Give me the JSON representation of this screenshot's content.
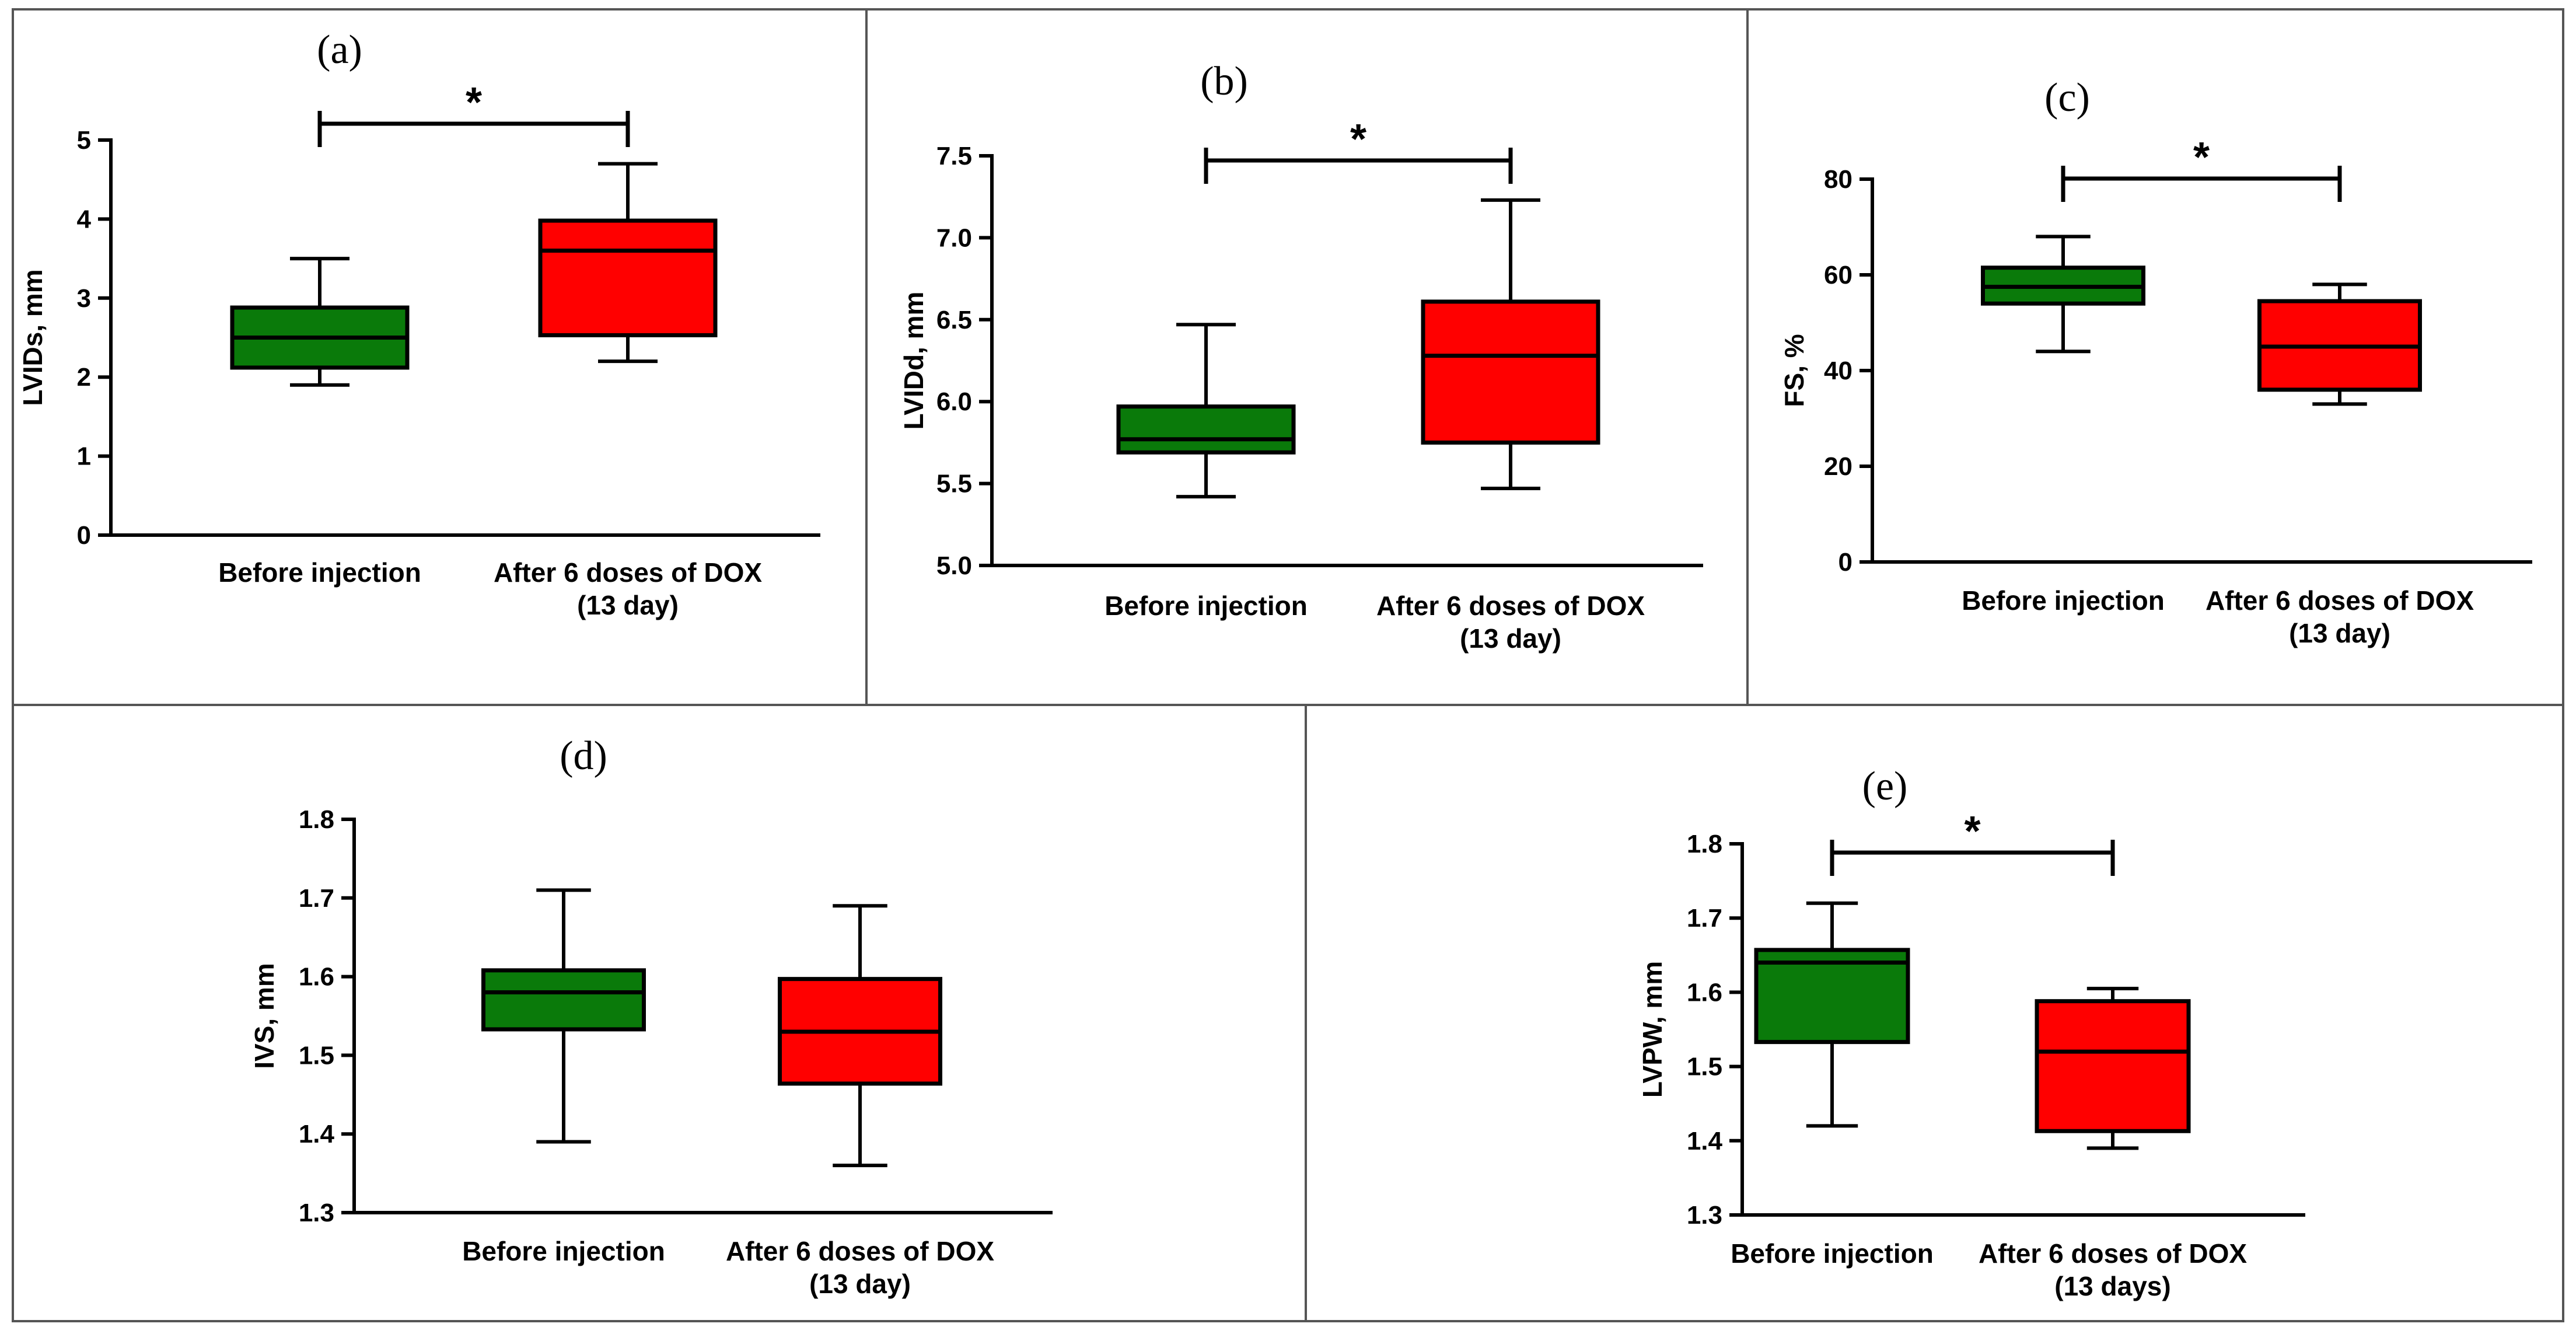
{
  "colors": {
    "before": "#0a7a0a",
    "after": "#ff0000",
    "ink": "#000000",
    "border": "#555555"
  },
  "chart_data": [
    {
      "id": "a",
      "panel_label": "(a)",
      "type": "boxplot",
      "ylabel": "LVIDs, mm",
      "ylim": [
        0,
        5
      ],
      "yticks": [
        "0",
        "1",
        "2",
        "3",
        "4",
        "5"
      ],
      "categories": [
        {
          "lines": [
            "Before injection"
          ],
          "color": "before",
          "min": 1.9,
          "q1": 2.12,
          "median": 2.5,
          "q3": 2.88,
          "max": 3.5
        },
        {
          "lines": [
            "After 6 doses of DOX",
            "(13 day)"
          ],
          "color": "after",
          "min": 2.2,
          "q1": 2.53,
          "median": 3.6,
          "q3": 3.98,
          "max": 4.7
        }
      ],
      "significance": "*"
    },
    {
      "id": "b",
      "panel_label": "(b)",
      "type": "boxplot",
      "ylabel": "LVIDd, mm",
      "ylim": [
        5.0,
        7.5
      ],
      "yticks": [
        "5.0",
        "5.5",
        "6.0",
        "6.5",
        "7.0",
        "7.5"
      ],
      "categories": [
        {
          "lines": [
            "Before injection"
          ],
          "color": "before",
          "min": 5.42,
          "q1": 5.69,
          "median": 5.77,
          "q3": 5.97,
          "max": 6.47
        },
        {
          "lines": [
            "After 6 doses of DOX",
            "(13 day)"
          ],
          "color": "after",
          "min": 5.47,
          "q1": 5.75,
          "median": 6.28,
          "q3": 6.61,
          "max": 7.23
        }
      ],
      "significance": "*"
    },
    {
      "id": "c",
      "panel_label": "(c)",
      "type": "boxplot",
      "ylabel": "FS, %",
      "ylim": [
        0,
        80
      ],
      "yticks": [
        "0",
        "20",
        "40",
        "60",
        "80"
      ],
      "categories": [
        {
          "lines": [
            "Before injection"
          ],
          "color": "before",
          "min": 44,
          "q1": 54,
          "median": 57.5,
          "q3": 61.5,
          "max": 68
        },
        {
          "lines": [
            "After 6 doses of DOX",
            "(13 day)"
          ],
          "color": "after",
          "min": 33,
          "q1": 36,
          "median": 45,
          "q3": 54.5,
          "max": 58
        }
      ],
      "significance": "*"
    },
    {
      "id": "d",
      "panel_label": "(d)",
      "type": "boxplot",
      "ylabel": "IVS, mm",
      "ylim": [
        1.3,
        1.8
      ],
      "yticks": [
        "1.3",
        "1.4",
        "1.5",
        "1.6",
        "1.7",
        "1.8"
      ],
      "categories": [
        {
          "lines": [
            "Before injection"
          ],
          "color": "before",
          "min": 1.39,
          "q1": 1.533,
          "median": 1.58,
          "q3": 1.608,
          "max": 1.71
        },
        {
          "lines": [
            "After 6 doses of DOX",
            "(13 day)"
          ],
          "color": "after",
          "min": 1.36,
          "q1": 1.464,
          "median": 1.53,
          "q3": 1.597,
          "max": 1.69
        }
      ],
      "significance": ""
    },
    {
      "id": "e",
      "panel_label": "(e)",
      "type": "boxplot",
      "ylabel": "LVPW, mm",
      "ylim": [
        1.3,
        1.8
      ],
      "yticks": [
        "1.3",
        "1.4",
        "1.5",
        "1.6",
        "1.7",
        "1.8"
      ],
      "categories": [
        {
          "lines": [
            "Before injection"
          ],
          "color": "before",
          "min": 1.42,
          "q1": 1.533,
          "median": 1.64,
          "q3": 1.657,
          "max": 1.72
        },
        {
          "lines": [
            "After 6 doses of DOX",
            "(13 days)"
          ],
          "color": "after",
          "min": 1.39,
          "q1": 1.413,
          "median": 1.52,
          "q3": 1.588,
          "max": 1.605
        }
      ],
      "significance": "*"
    }
  ]
}
